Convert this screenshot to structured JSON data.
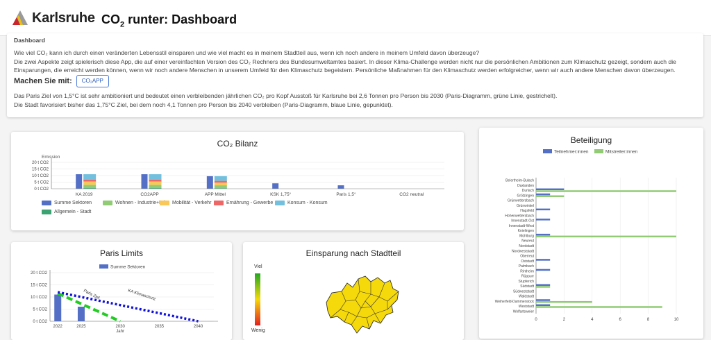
{
  "header": {
    "org": "Karlsruhe",
    "title_pre": "CO",
    "title_sub": "2",
    "title_post": " runter: Dashboard"
  },
  "intro": {
    "section": "Dashboard",
    "line1": "Wie viel CO₂ kann ich durch einen veränderten Lebensstil einsparen und wie viel macht es in meinem Stadtteil aus, wenn ich noch andere in meinem Umfeld davon überzeuge?",
    "line2": "Die zwei Aspekte zeigt spielerisch diese App, die auf einer vereinfachten Version des CO₂ Rechners des Bundesumweltamtes basiert. In dieser Klima-Challenge werden nicht nur die persönlichen Ambitionen zum Klimaschutz gezeigt, sondern auch die",
    "line3": "Einsparungen, die erreicht werden können, wenn wir noch andere Menschen in unserem Umfeld für den Klimaschutz begeistern. Persönliche Maßnahmen für den Klimaschutz werden erfolgreicher, wenn wir auch andere Menschen davon überzeugen.",
    "make_label": "Machen Sie mit:",
    "app_button": "CO₂APP",
    "line4": "Das Paris Ziel von 1,5°C ist sehr ambitioniert und bedeutet einen verbleibenden jährlichen CO₂ pro Kopf Ausstoß für Karlsruhe bei 2,6 Tonnen pro Person bis 2030 (Paris-Diagramm, grüne Linie, gestrichelt).",
    "line5": "Die Stadt favorisiert bisher das 1,75°C Ziel, bei dem noch 4,1 Tonnen pro Person bis 2040 verbleiben (Paris-Diagramm, blaue Linie, gepunktet)."
  },
  "cards": {
    "bilanz_title": "CO₂ Bilanz",
    "paris_title": "Paris Limits",
    "einsparung_title": "Einsparung nach Stadtteil",
    "beteiligung_title": "Beteiligung"
  },
  "einsparung": {
    "scale_top": "Viel",
    "scale_bottom": "Wenig",
    "fill_color": "#f5d90a",
    "border_color": "#333333"
  },
  "chart_data": [
    {
      "type": "bar",
      "id": "bilanz",
      "title": "CO₂ Bilanz",
      "ylabel": "Emission",
      "yticks": [
        "0 t CO2",
        "5 t CO2",
        "10 t CO2",
        "15 t CO2",
        "20 t CO2"
      ],
      "ylim": [
        0,
        20
      ],
      "categories": [
        "KA 2019",
        "CO2APP",
        "APP Mittel",
        "KSK 1,75°",
        "Paris 1,5°",
        "CO2 neutral"
      ],
      "series": [
        {
          "name": "Summe Sektoren",
          "color": "#5470c6",
          "values": [
            11,
            11,
            9.5,
            4.1,
            2.6,
            0
          ]
        },
        {
          "name": "Wohnen - Industrie+Priv",
          "color": "#91cc75",
          "values": [
            2.5,
            2.5,
            2.2,
            0,
            0,
            0
          ]
        },
        {
          "name": "Mobilität - Verkehr",
          "color": "#fac858",
          "values": [
            2.5,
            2.5,
            2.0,
            0,
            0,
            0
          ]
        },
        {
          "name": "Ernährung - Gewerbe",
          "color": "#ee6666",
          "values": [
            1.5,
            1.5,
            1.4,
            0,
            0,
            0
          ]
        },
        {
          "name": "Konsum - Konsum",
          "color": "#73c0de",
          "values": [
            4,
            4,
            3.5,
            0,
            0,
            0
          ]
        },
        {
          "name": "Allgemein - Stadt",
          "color": "#3ba272",
          "values": [
            0.5,
            0.5,
            0.4,
            0,
            0,
            0
          ]
        }
      ],
      "stacked_series": [
        "Allgemein - Stadt",
        "Wohnen - Industrie+Priv",
        "Mobilität - Verkehr",
        "Ernährung - Gewerbe",
        "Konsum - Konsum"
      ],
      "legend_position": "bottom-left",
      "grid": true
    },
    {
      "type": "bar",
      "id": "paris",
      "title": "Paris Limits",
      "xlabel": "Jahr",
      "yticks": [
        "0 t CO2",
        "5 t CO2",
        "10 t CO2",
        "15 t CO2",
        "20 t CO2"
      ],
      "ylim": [
        0,
        20
      ],
      "xticks": [
        "2022",
        "2025",
        "2030",
        "2035",
        "2040"
      ],
      "xlim": [
        2021,
        2042
      ],
      "series": [
        {
          "name": "Summe Sektoren",
          "color": "#5470c6",
          "x": [
            2022,
            2025
          ],
          "values": [
            11,
            6
          ]
        }
      ],
      "lines": [
        {
          "name": "Paris Ziel",
          "color": "#22cc22",
          "style": "dashed",
          "x": [
            2022,
            2030
          ],
          "values": [
            11.5,
            0
          ]
        },
        {
          "name": "KA Klimaschutz",
          "color": "#1010dd",
          "style": "dotted",
          "x": [
            2022,
            2040
          ],
          "values": [
            12,
            0
          ]
        }
      ],
      "annotations": [
        "Paris Ziel",
        "KA Klimaschutz"
      ],
      "legend_position": "top",
      "grid": true
    },
    {
      "type": "bar",
      "id": "beteiligung",
      "title": "Beteiligung",
      "orientation": "horizontal",
      "xticks": [
        "0",
        "2",
        "4",
        "6",
        "8",
        "10"
      ],
      "xlim": [
        0,
        10
      ],
      "categories": [
        "Beiertheim-Bulach",
        "Daxlanden",
        "Durlach",
        "Grötzingen",
        "Grünwettersbach",
        "Grünwinkel",
        "Hagsfeld",
        "Hohenwettersbach",
        "Innenstadt-Ost",
        "Innenstadt-West",
        "Knielingen",
        "Mühlburg",
        "Neureut",
        "Nordstadt",
        "Nordweststadt",
        "Oberreut",
        "Oststadt",
        "Palmbach",
        "Rintheim",
        "Rüppurr",
        "Stupferich",
        "Südstadt",
        "Südweststadt",
        "Waldstadt",
        "Weiherfeld-Dammerstock",
        "Weststadt",
        "Wolfartsweier"
      ],
      "series": [
        {
          "name": "Teilnehmer:innen",
          "color": "#5470c6",
          "values": [
            0,
            0,
            2,
            1,
            0,
            0,
            1,
            0,
            1,
            0,
            0,
            1,
            0,
            0,
            0,
            0,
            1,
            0,
            1,
            0,
            0,
            1,
            0,
            0,
            1,
            1,
            0
          ]
        },
        {
          "name": "Mitstreiter:innen",
          "color": "#91cc75",
          "values": [
            0,
            0,
            10,
            2,
            0,
            0,
            0,
            0,
            0,
            0,
            0,
            10,
            0,
            0,
            0,
            0,
            0,
            0,
            0,
            0,
            0,
            1,
            0,
            0,
            4,
            9,
            0
          ]
        }
      ],
      "legend_position": "top",
      "grid": true
    }
  ]
}
